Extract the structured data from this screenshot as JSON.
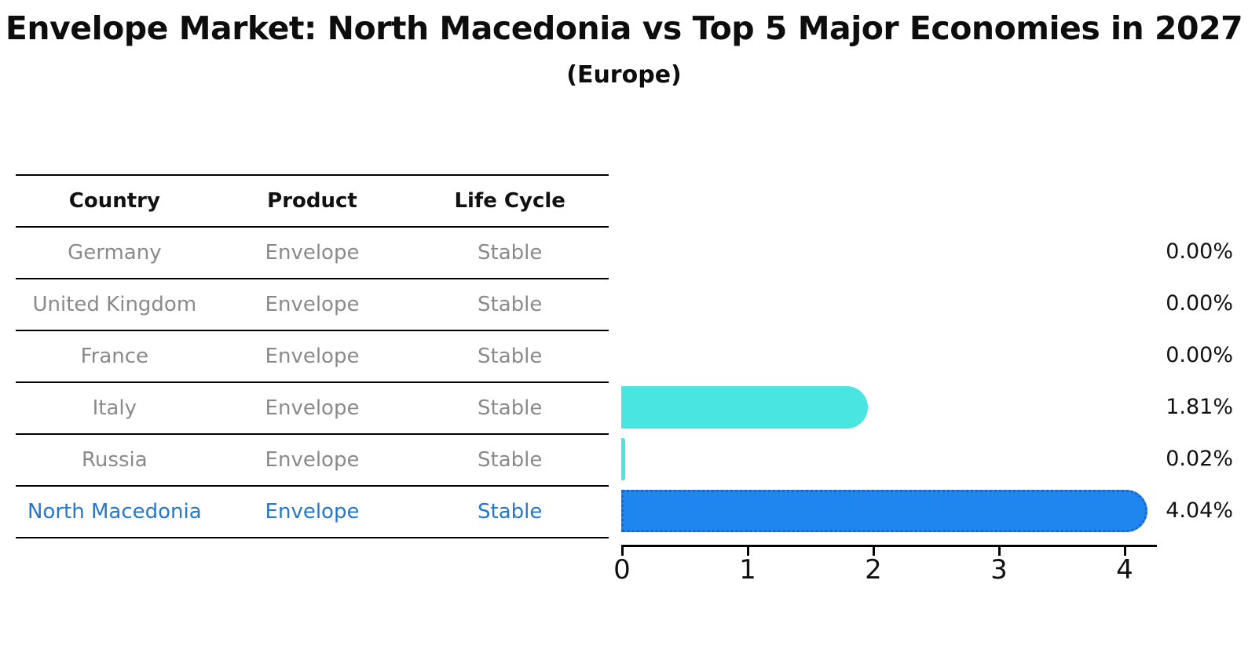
{
  "title": "Envelope Market: North Macedonia vs Top 5 Major Economies in 2027",
  "subtitle": "(Europe)",
  "table": {
    "columns": [
      "Country",
      "Product",
      "Life Cycle"
    ],
    "rows": [
      {
        "country": "Germany",
        "product": "Envelope",
        "life_cycle": "Stable",
        "highlight": false
      },
      {
        "country": "United Kingdom",
        "product": "Envelope",
        "life_cycle": "Stable",
        "highlight": false
      },
      {
        "country": "France",
        "product": "Envelope",
        "life_cycle": "Stable",
        "highlight": false
      },
      {
        "country": "Italy",
        "product": "Envelope",
        "life_cycle": "Stable",
        "highlight": false
      },
      {
        "country": "Russia",
        "product": "Envelope",
        "life_cycle": "Stable",
        "highlight": false
      },
      {
        "country": "North Macedonia",
        "product": "Envelope",
        "life_cycle": "Stable",
        "highlight": true
      }
    ]
  },
  "chart_data": {
    "type": "bar",
    "orientation": "horizontal",
    "title": "Envelope Market: North Macedonia vs Top 5 Major Economies in 2027 (Europe)",
    "categories": [
      "Germany",
      "United Kingdom",
      "France",
      "Italy",
      "Russia",
      "North Macedonia"
    ],
    "values": [
      0.0,
      0.0,
      0.0,
      1.81,
      0.02,
      4.04
    ],
    "value_labels": [
      "0.00%",
      "0.00%",
      "0.00%",
      "1.81%",
      "0.02%",
      "4.04%"
    ],
    "unit": "%",
    "xlim": [
      0,
      4
    ],
    "x_ticks": [
      0,
      1,
      2,
      3,
      4
    ],
    "grid": false,
    "legend": "none",
    "highlight_index": 5,
    "bar_colors": [
      "#48e5e1",
      "#48e5e1",
      "#48e5e1",
      "#48e5e1",
      "#48e5e1",
      "#1e86ee"
    ]
  },
  "colors": {
    "bar_cyan": "#48e5e1",
    "bar_blue": "#1e86ee",
    "highlight_border": "#1a66c8",
    "highlight_text": "#2577c9",
    "table_text": "#8a8a8a",
    "heading_text": "#0d0d0d"
  }
}
